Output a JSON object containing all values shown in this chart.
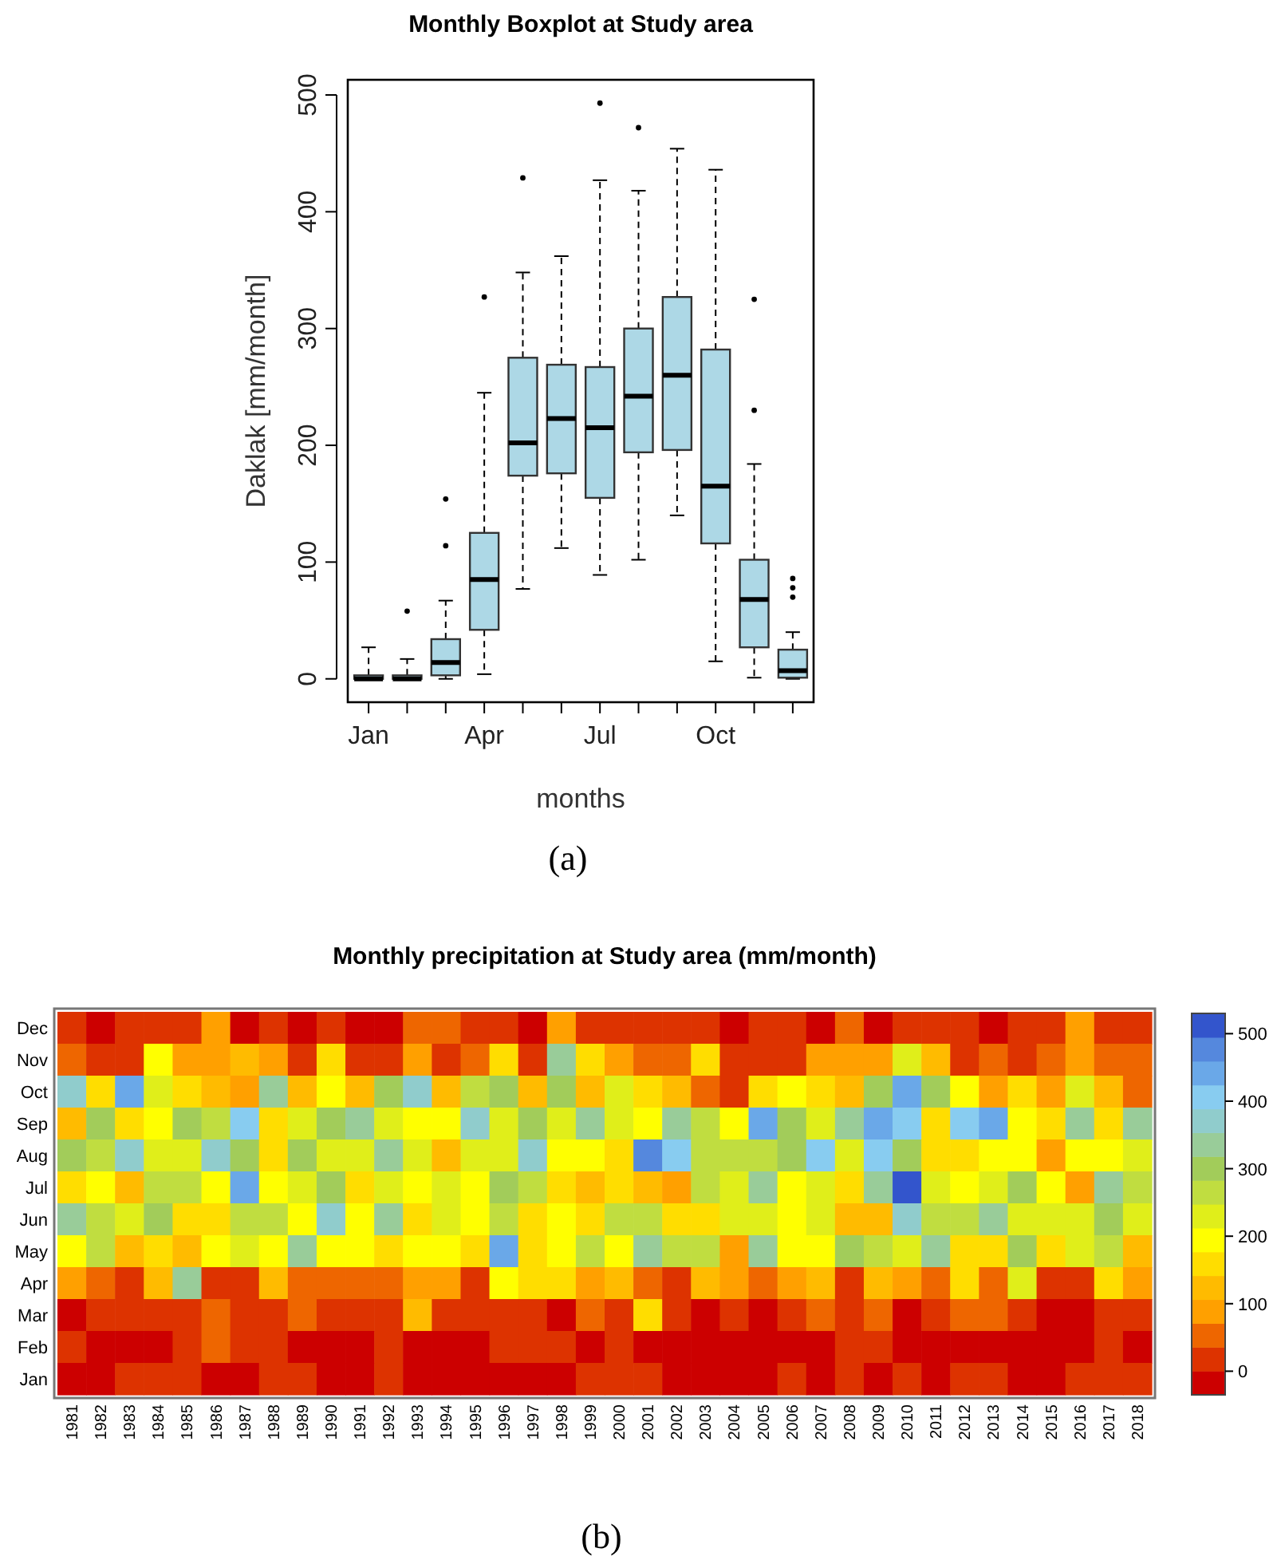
{
  "chart_data": [
    {
      "type": "box",
      "title": "Monthly Boxplot at Study area",
      "xlabel": "months",
      "ylabel": "Daklak [mm/month]",
      "categories": [
        "Jan",
        null,
        null,
        "Apr",
        null,
        null,
        "Jul",
        null,
        null,
        "Oct",
        null,
        null
      ],
      "color": "#add8e6",
      "ylim": [
        -20,
        513
      ],
      "yticks": [
        0,
        100,
        200,
        300,
        400,
        500
      ],
      "annotations": [
        "(a)"
      ],
      "boxes": [
        {
          "low": 0,
          "q1": 0,
          "median": 0,
          "q3": 3,
          "high": 27
        },
        {
          "low": 0,
          "q1": 0,
          "median": 0,
          "q3": 3,
          "high": 17,
          "outliers": [
            58
          ]
        },
        {
          "low": 0,
          "q1": 3,
          "median": 14,
          "q3": 34,
          "high": 67,
          "outliers": [
            114,
            154
          ]
        },
        {
          "low": 4,
          "q1": 42,
          "median": 85,
          "q3": 125,
          "high": 245,
          "outliers": [
            327
          ]
        },
        {
          "low": 77,
          "q1": 174,
          "median": 202,
          "q3": 275,
          "high": 348,
          "outliers": [
            429
          ]
        },
        {
          "low": 112,
          "q1": 176,
          "median": 223,
          "q3": 269,
          "high": 362
        },
        {
          "low": 89,
          "q1": 155,
          "median": 215,
          "q3": 267,
          "high": 427,
          "outliers": [
            493
          ]
        },
        {
          "low": 102,
          "q1": 194,
          "median": 242,
          "q3": 300,
          "high": 418,
          "outliers": [
            472
          ]
        },
        {
          "low": 140,
          "q1": 196,
          "median": 260,
          "q3": 327,
          "high": 454
        },
        {
          "low": 15,
          "q1": 116,
          "median": 165,
          "q3": 282,
          "high": 436
        },
        {
          "low": 1,
          "q1": 27,
          "median": 68,
          "q3": 102,
          "high": 184,
          "outliers": [
            230,
            325
          ]
        },
        {
          "low": 0,
          "q1": 1,
          "median": 7,
          "q3": 25,
          "high": 40,
          "outliers": [
            70,
            78,
            86
          ]
        }
      ]
    },
    {
      "type": "heatmap",
      "title": "Monthly precipitation at Study area (mm/month)",
      "annotations": [
        "(b)"
      ],
      "categories": [
        "1981",
        "1982",
        "1983",
        "1984",
        "1985",
        "1986",
        "1987",
        "1988",
        "1989",
        "1990",
        "1991",
        "1992",
        "1993",
        "1994",
        "1995",
        "1996",
        "1997",
        "1998",
        "1999",
        "2000",
        "2001",
        "2002",
        "2003",
        "2004",
        "2005",
        "2006",
        "2007",
        "2008",
        "2009",
        "2010",
        "2011",
        "2012",
        "2013",
        "2014",
        "2015",
        "2016",
        "2017",
        "2018"
      ],
      "y_categories": [
        "Dec",
        "Nov",
        "Oct",
        "Sep",
        "Aug",
        "Jul",
        "Jun",
        "May",
        "Apr",
        "Mar",
        "Feb",
        "Jan"
      ],
      "clim": [
        -35,
        530
      ],
      "cticks": [
        0,
        100,
        200,
        300,
        400,
        500
      ],
      "colors": [
        "#cc0000",
        "#dd3300",
        "#ee6600",
        "#ffa000",
        "#ffbb00",
        "#ffdd00",
        "#ffff00",
        "#e0ee1a",
        "#c0dd40",
        "#a2cc5a",
        "#99cc99",
        "#90cccc",
        "#88ccf0",
        "#6aa8e8",
        "#5588dd",
        "#3355cc"
      ],
      "cells": [
        [
          20,
          0,
          20,
          20,
          20,
          90,
          0,
          20,
          0,
          20,
          0,
          0,
          55,
          55,
          20,
          20,
          0,
          90,
          20,
          20,
          20,
          20,
          20,
          0,
          20,
          20,
          0,
          55,
          0,
          20,
          20,
          20,
          0,
          20,
          20,
          90,
          20,
          20
        ],
        [
          55,
          20,
          20,
          195,
          90,
          90,
          125,
          90,
          20,
          160,
          20,
          20,
          90,
          20,
          55,
          160,
          20,
          335,
          160,
          90,
          55,
          55,
          160,
          20,
          20,
          20,
          90,
          90,
          90,
          230,
          125,
          20,
          55,
          20,
          55,
          90,
          55,
          55
        ],
        [
          370,
          160,
          440,
          230,
          160,
          125,
          90,
          335,
          125,
          195,
          125,
          300,
          370,
          125,
          265,
          300,
          125,
          300,
          125,
          230,
          160,
          125,
          55,
          20,
          160,
          195,
          160,
          125,
          300,
          440,
          300,
          195,
          90,
          160,
          90,
          230,
          125,
          55
        ],
        [
          125,
          300,
          160,
          195,
          300,
          265,
          405,
          160,
          230,
          300,
          335,
          230,
          195,
          195,
          370,
          230,
          300,
          230,
          335,
          230,
          195,
          335,
          265,
          195,
          440,
          300,
          230,
          335,
          440,
          405,
          160,
          405,
          440,
          195,
          160,
          335,
          160,
          335
        ],
        [
          300,
          265,
          370,
          230,
          230,
          370,
          300,
          160,
          300,
          230,
          230,
          335,
          230,
          125,
          230,
          230,
          370,
          195,
          195,
          160,
          475,
          405,
          265,
          265,
          265,
          300,
          405,
          230,
          405,
          300,
          160,
          160,
          195,
          195,
          90,
          195,
          195,
          230
        ],
        [
          160,
          195,
          125,
          265,
          265,
          195,
          440,
          195,
          230,
          300,
          160,
          230,
          195,
          230,
          195,
          300,
          265,
          160,
          125,
          160,
          125,
          90,
          265,
          230,
          335,
          195,
          230,
          160,
          335,
          510,
          230,
          195,
          230,
          300,
          195,
          90,
          335,
          265
        ],
        [
          335,
          265,
          230,
          300,
          160,
          160,
          265,
          265,
          195,
          370,
          195,
          335,
          160,
          230,
          195,
          265,
          160,
          195,
          160,
          265,
          265,
          160,
          160,
          230,
          230,
          195,
          230,
          125,
          125,
          370,
          265,
          265,
          335,
          230,
          230,
          230,
          300,
          230
        ],
        [
          195,
          265,
          125,
          160,
          125,
          195,
          230,
          195,
          335,
          195,
          195,
          160,
          195,
          195,
          160,
          440,
          160,
          195,
          265,
          195,
          335,
          265,
          265,
          90,
          335,
          195,
          195,
          300,
          265,
          230,
          335,
          160,
          160,
          300,
          160,
          230,
          265,
          125
        ],
        [
          90,
          55,
          20,
          125,
          335,
          20,
          20,
          125,
          55,
          55,
          55,
          55,
          90,
          90,
          20,
          195,
          160,
          160,
          90,
          125,
          55,
          20,
          125,
          90,
          55,
          90,
          125,
          20,
          125,
          90,
          55,
          160,
          55,
          230,
          20,
          20,
          160,
          90
        ],
        [
          0,
          20,
          20,
          20,
          20,
          55,
          20,
          20,
          55,
          20,
          20,
          20,
          125,
          20,
          20,
          20,
          20,
          0,
          55,
          20,
          160,
          20,
          0,
          20,
          0,
          20,
          55,
          20,
          55,
          0,
          20,
          55,
          55,
          20,
          0,
          0,
          20,
          20
        ],
        [
          20,
          0,
          0,
          0,
          20,
          55,
          20,
          20,
          0,
          0,
          0,
          20,
          0,
          0,
          0,
          20,
          20,
          20,
          0,
          20,
          0,
          0,
          0,
          0,
          0,
          0,
          0,
          20,
          20,
          0,
          0,
          0,
          0,
          0,
          0,
          0,
          20,
          0
        ],
        [
          0,
          0,
          20,
          20,
          20,
          0,
          0,
          20,
          20,
          0,
          0,
          20,
          0,
          0,
          0,
          0,
          0,
          0,
          20,
          20,
          20,
          0,
          0,
          0,
          0,
          20,
          0,
          20,
          0,
          20,
          0,
          20,
          20,
          0,
          0,
          20,
          20,
          20
        ]
      ]
    }
  ]
}
